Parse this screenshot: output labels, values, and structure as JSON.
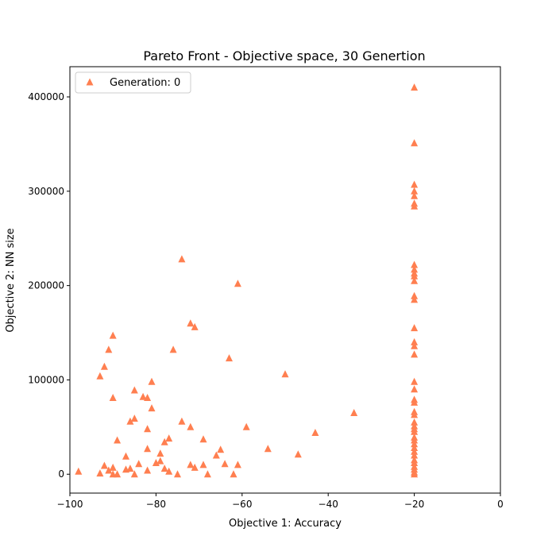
{
  "chart_data": {
    "type": "scatter",
    "title": "Pareto Front - Objective space, 30 Genertion",
    "xlabel": "Objective 1: Accuracy",
    "ylabel": "Objective 2: NN size",
    "xlim": [
      -100,
      0
    ],
    "ylim": [
      -20000,
      432000
    ],
    "xticks": [
      -100,
      -80,
      -60,
      -40,
      -20,
      0
    ],
    "xtick_labels": [
      "−100",
      "−80",
      "−60",
      "−40",
      "−20",
      "0"
    ],
    "yticks": [
      0,
      100000,
      200000,
      300000,
      400000
    ],
    "ytick_labels": [
      "0",
      "100000",
      "200000",
      "300000",
      "400000"
    ],
    "legend_position": "upper-left",
    "series": [
      {
        "name": "Generation: 0",
        "color": "#ff7f50",
        "marker": "triangle-up",
        "points": [
          [
            -98,
            3000
          ],
          [
            -93,
            1000
          ],
          [
            -92,
            9000
          ],
          [
            -91,
            4000
          ],
          [
            -90,
            0
          ],
          [
            -90,
            7000
          ],
          [
            -89,
            0
          ],
          [
            -87,
            5000
          ],
          [
            -86,
            6000
          ],
          [
            -85,
            0
          ],
          [
            -84,
            11000
          ],
          [
            -87,
            19000
          ],
          [
            -89,
            36000
          ],
          [
            -86,
            56000
          ],
          [
            -85,
            59000
          ],
          [
            -82,
            4000
          ],
          [
            -80,
            12000
          ],
          [
            -79,
            14000
          ],
          [
            -79,
            22000
          ],
          [
            -78,
            6000
          ],
          [
            -77,
            3000
          ],
          [
            -75,
            0
          ],
          [
            -72,
            10000
          ],
          [
            -71,
            7000
          ],
          [
            -69,
            10000
          ],
          [
            -68,
            0
          ],
          [
            -66,
            20000
          ],
          [
            -65,
            26000
          ],
          [
            -64,
            11000
          ],
          [
            -62,
            0
          ],
          [
            -61,
            10000
          ],
          [
            -82,
            27000
          ],
          [
            -82,
            48000
          ],
          [
            -78,
            34000
          ],
          [
            -77,
            38000
          ],
          [
            -74,
            56000
          ],
          [
            -72,
            50000
          ],
          [
            -69,
            37000
          ],
          [
            -59,
            50000
          ],
          [
            -54,
            27000
          ],
          [
            -47,
            21000
          ],
          [
            -43,
            44000
          ],
          [
            -34,
            65000
          ],
          [
            -50,
            106000
          ],
          [
            -63,
            123000
          ],
          [
            -81,
            70000
          ],
          [
            -83,
            82000
          ],
          [
            -81,
            98000
          ],
          [
            -82,
            81000
          ],
          [
            -85,
            89000
          ],
          [
            -90,
            81000
          ],
          [
            -93,
            104000
          ],
          [
            -92,
            114000
          ],
          [
            -91,
            132000
          ],
          [
            -90,
            147000
          ],
          [
            -76,
            132000
          ],
          [
            -72,
            160000
          ],
          [
            -71,
            156000
          ],
          [
            -74,
            228000
          ],
          [
            -61,
            202000
          ],
          [
            -20,
            410000
          ],
          [
            -20,
            351000
          ],
          [
            -20,
            307000
          ],
          [
            -20,
            300000
          ],
          [
            -20,
            295000
          ],
          [
            -20,
            287000
          ],
          [
            -20,
            284000
          ],
          [
            -20,
            222000
          ],
          [
            -20,
            217000
          ],
          [
            -20,
            213000
          ],
          [
            -20,
            210000
          ],
          [
            -20,
            205000
          ],
          [
            -20,
            189000
          ],
          [
            -20,
            185000
          ],
          [
            -20,
            155000
          ],
          [
            -20,
            140000
          ],
          [
            -20,
            136000
          ],
          [
            -20,
            127000
          ],
          [
            -20,
            98000
          ],
          [
            -20,
            90000
          ],
          [
            -20,
            79000
          ],
          [
            -20,
            76000
          ],
          [
            -20,
            66000
          ],
          [
            -20,
            63000
          ],
          [
            -20,
            55000
          ],
          [
            -20,
            51000
          ],
          [
            -20,
            48000
          ],
          [
            -20,
            45000
          ],
          [
            -20,
            39000
          ],
          [
            -20,
            36000
          ],
          [
            -20,
            32000
          ],
          [
            -20,
            28000
          ],
          [
            -20,
            24000
          ],
          [
            -20,
            20000
          ],
          [
            -20,
            15000
          ],
          [
            -20,
            12000
          ],
          [
            -20,
            8000
          ],
          [
            -20,
            5000
          ],
          [
            -20,
            2000
          ],
          [
            -20,
            0
          ]
        ]
      }
    ]
  }
}
